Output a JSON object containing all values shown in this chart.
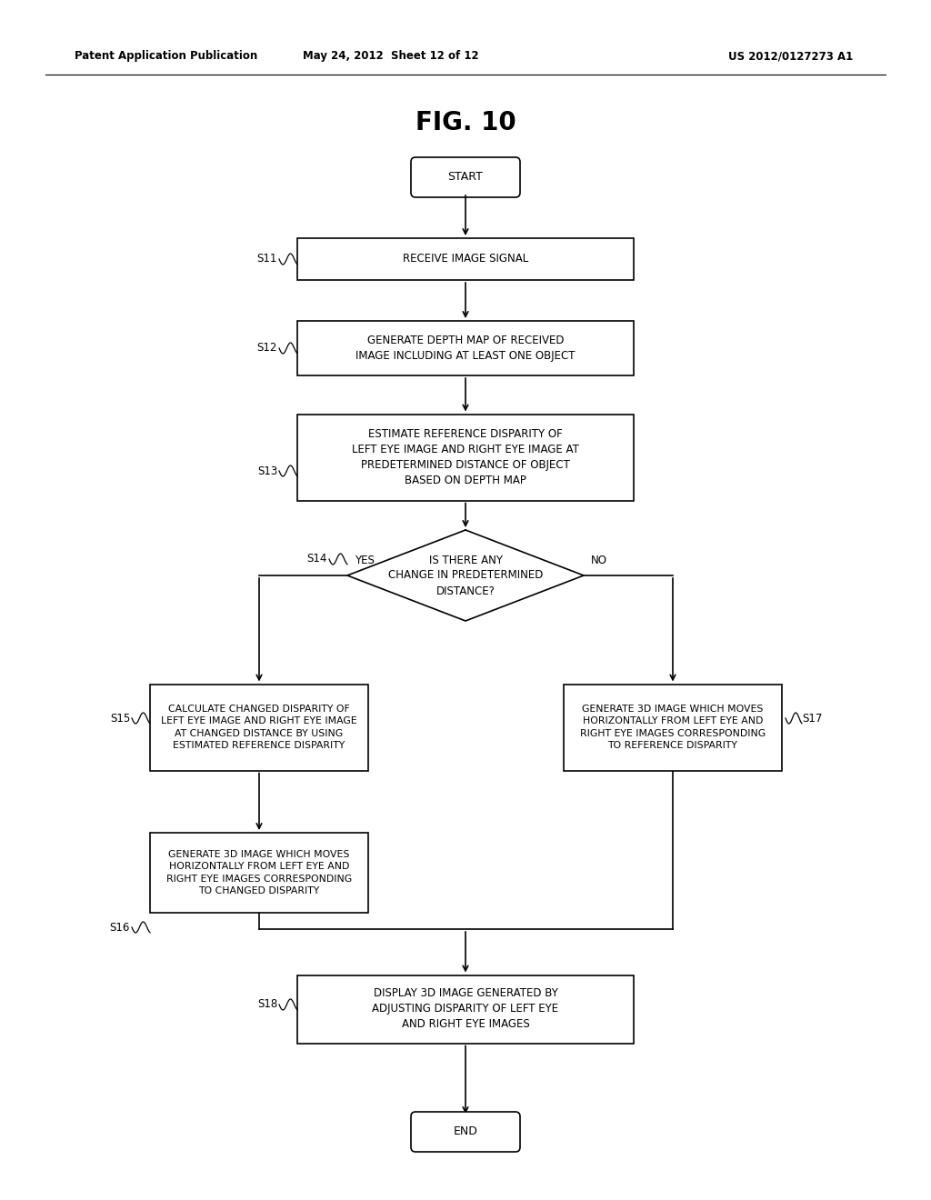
{
  "title": "FIG. 10",
  "header_left": "Patent Application Publication",
  "header_mid": "May 24, 2012  Sheet 12 of 12",
  "header_right": "US 2012/0127273 A1",
  "background": "#ffffff",
  "start_label": "START",
  "end_label": "END",
  "s11_label": "RECEIVE IMAGE SIGNAL",
  "s12_label": "GENERATE DEPTH MAP OF RECEIVED\nIMAGE INCLUDING AT LEAST ONE OBJECT",
  "s13_label": "ESTIMATE REFERENCE DISPARITY OF\nLEFT EYE IMAGE AND RIGHT EYE IMAGE AT\nPREDETERMINED DISTANCE OF OBJECT\nBASED ON DEPTH MAP",
  "s14_label": "IS THERE ANY\nCHANGE IN PREDETERMINED\nDISTANCE?",
  "s15_label": "CALCULATE CHANGED DISPARITY OF\nLEFT EYE IMAGE AND RIGHT EYE IMAGE\nAT CHANGED DISTANCE BY USING\nESTIMATED REFERENCE DISPARITY",
  "s16_label": "GENERATE 3D IMAGE WHICH MOVES\nHORIZONTALLY FROM LEFT EYE AND\nRIGHT EYE IMAGES CORRESPONDING\nTO CHANGED DISPARITY",
  "s17_label": "GENERATE 3D IMAGE WHICH MOVES\nHORIZONTALLY FROM LEFT EYE AND\nRIGHT EYE IMAGES CORRESPONDING\nTO REFERENCE DISPARITY",
  "s18_label": "DISPLAY 3D IMAGE GENERATED BY\nADJUSTING DISPARITY OF LEFT EYE\nAND RIGHT EYE IMAGES"
}
